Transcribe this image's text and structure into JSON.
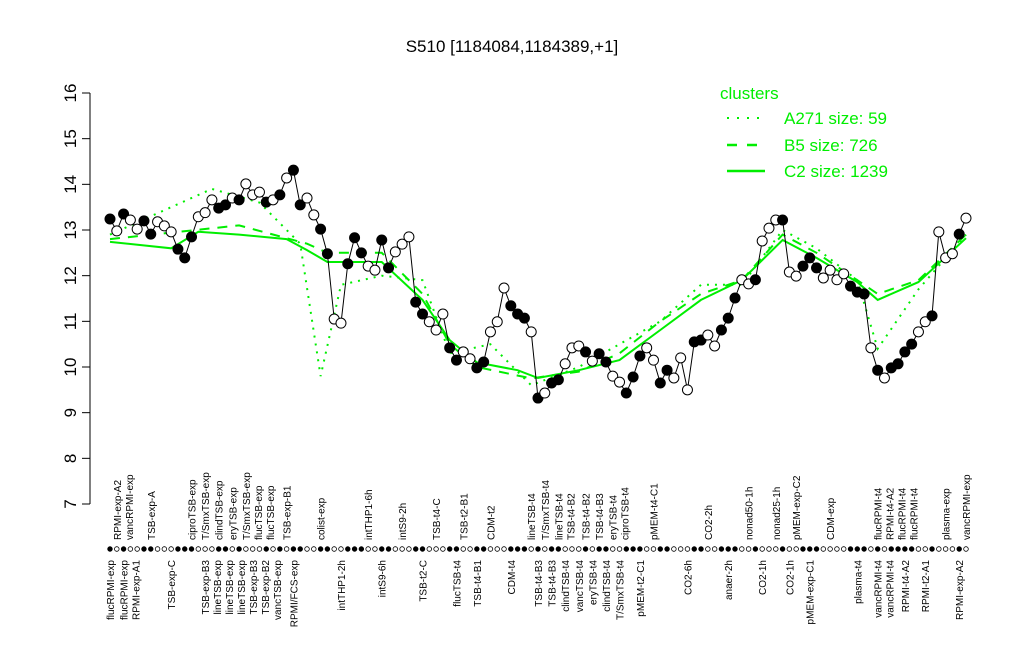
{
  "chart_data": {
    "type": "line",
    "title": "S510 [1184084,1184389,+1]",
    "xlabel": "",
    "ylabel": "",
    "ylim": [
      7,
      16
    ],
    "yticks": [
      7,
      8,
      9,
      10,
      11,
      12,
      13,
      14,
      15,
      16
    ],
    "grid": false,
    "legend": {
      "title": "clusters",
      "placement": "top-right",
      "color": "#00ee00",
      "entries": [
        {
          "label": "A271 size: 59",
          "style": "dotted"
        },
        {
          "label": "B5 size: 726",
          "style": "dashed"
        },
        {
          "label": "C2 size: 1239",
          "style": "solid"
        }
      ]
    },
    "sample_values": [
      13.24,
      12.98,
      13.35,
      13.22,
      13.02,
      13.2,
      12.91,
      13.18,
      13.09,
      12.96,
      12.58,
      12.39,
      12.85,
      13.29,
      13.38,
      13.66,
      13.48,
      13.55,
      13.7,
      13.66,
      14.01,
      13.77,
      13.83,
      13.61,
      13.66,
      13.77,
      14.14,
      14.31,
      13.55,
      13.7,
      13.33,
      13.02,
      12.48,
      11.05,
      10.96,
      12.26,
      12.83,
      12.5,
      12.21,
      12.12,
      12.78,
      12.17,
      12.52,
      12.69,
      12.85,
      11.42,
      11.16,
      10.99,
      10.81,
      11.16,
      10.42,
      10.15,
      10.33,
      10.18,
      9.98,
      10.11,
      10.77,
      10.99,
      11.73,
      11.34,
      11.16,
      11.07,
      10.77,
      9.32,
      9.43,
      9.65,
      9.72,
      10.07,
      10.42,
      10.46,
      10.33,
      10.13,
      10.29,
      10.11,
      9.8,
      9.67,
      9.43,
      9.78,
      10.24,
      10.42,
      10.15,
      9.65,
      9.93,
      9.76,
      10.2,
      9.5,
      10.55,
      10.59,
      10.7,
      10.46,
      10.81,
      11.07,
      11.51,
      11.91,
      11.82,
      11.91,
      12.76,
      13.04,
      13.22,
      13.22,
      12.08,
      11.99,
      12.21,
      12.39,
      12.17,
      11.95,
      12.12,
      11.91,
      12.04,
      11.77,
      11.64,
      11.6,
      10.42,
      9.93,
      9.76,
      9.98,
      10.07,
      10.33,
      10.5,
      10.77,
      10.99,
      11.12,
      12.96,
      12.39,
      12.48,
      12.91,
      13.26
    ],
    "sample_filled": [
      1,
      0,
      1,
      0,
      0,
      1,
      1,
      0,
      0,
      0,
      1,
      1,
      1,
      0,
      0,
      0,
      1,
      1,
      0,
      1,
      0,
      0,
      0,
      1,
      0,
      1,
      0,
      1,
      1,
      0,
      0,
      1,
      1,
      0,
      0,
      1,
      1,
      1,
      0,
      0,
      1,
      1,
      0,
      0,
      0,
      1,
      1,
      0,
      0,
      0,
      1,
      1,
      0,
      0,
      1,
      1,
      0,
      0,
      0,
      1,
      1,
      1,
      0,
      1,
      0,
      1,
      1,
      0,
      0,
      0,
      1,
      0,
      1,
      1,
      0,
      0,
      1,
      1,
      1,
      0,
      0,
      1,
      1,
      0,
      0,
      0,
      1,
      1,
      0,
      0,
      1,
      1,
      1,
      0,
      0,
      1,
      0,
      0,
      0,
      1,
      0,
      0,
      1,
      1,
      1,
      0,
      0,
      0,
      0,
      1,
      1,
      1,
      0,
      1,
      0,
      1,
      1,
      1,
      1,
      0,
      0,
      1,
      0,
      0,
      0,
      1,
      0
    ],
    "series": [
      {
        "name": "C2 size: 1239",
        "style": "solid",
        "points": [
          [
            0,
            12.74
          ],
          [
            9,
            12.6
          ],
          [
            13,
            12.96
          ],
          [
            19,
            12.9
          ],
          [
            26,
            12.8
          ],
          [
            29,
            12.56
          ],
          [
            32,
            12.3
          ],
          [
            40,
            12.3
          ],
          [
            46,
            11.47
          ],
          [
            50,
            10.59
          ],
          [
            54,
            10.1
          ],
          [
            60,
            9.93
          ],
          [
            63,
            9.76
          ],
          [
            69,
            9.93
          ],
          [
            75,
            10.15
          ],
          [
            81,
            10.81
          ],
          [
            87,
            11.47
          ],
          [
            93,
            11.9
          ],
          [
            99,
            12.78
          ],
          [
            104,
            12.39
          ],
          [
            110,
            11.86
          ],
          [
            113,
            11.47
          ],
          [
            119,
            11.86
          ],
          [
            126,
            12.82
          ]
        ]
      },
      {
        "name": "B5 size: 726",
        "style": "dashed",
        "points": [
          [
            0,
            12.8
          ],
          [
            19,
            13.1
          ],
          [
            29,
            12.7
          ],
          [
            32,
            12.5
          ],
          [
            40,
            12.5
          ],
          [
            46,
            11.6
          ],
          [
            50,
            10.5
          ],
          [
            54,
            10.0
          ],
          [
            62,
            9.75
          ],
          [
            69,
            9.9
          ],
          [
            75,
            10.3
          ],
          [
            81,
            11.0
          ],
          [
            87,
            11.6
          ],
          [
            93,
            11.9
          ],
          [
            99,
            12.9
          ],
          [
            104,
            12.5
          ],
          [
            110,
            11.9
          ],
          [
            113,
            11.6
          ],
          [
            119,
            11.9
          ],
          [
            126,
            12.9
          ]
        ]
      },
      {
        "name": "A271 size: 59",
        "style": "dotted",
        "points": [
          [
            0,
            12.9
          ],
          [
            15,
            13.9
          ],
          [
            22,
            13.6
          ],
          [
            28,
            12.7
          ],
          [
            31,
            9.8
          ],
          [
            34,
            11.8
          ],
          [
            40,
            12.0
          ],
          [
            46,
            11.9
          ],
          [
            50,
            10.3
          ],
          [
            56,
            10.5
          ],
          [
            62,
            9.6
          ],
          [
            69,
            10.0
          ],
          [
            75,
            10.5
          ],
          [
            81,
            11.0
          ],
          [
            87,
            11.8
          ],
          [
            93,
            11.8
          ],
          [
            99,
            13.0
          ],
          [
            104,
            12.6
          ],
          [
            110,
            11.9
          ],
          [
            113,
            10.4
          ],
          [
            119,
            11.7
          ],
          [
            126,
            12.9
          ]
        ]
      }
    ],
    "top_labels": [
      {
        "i": 1,
        "t": "RPMI-exp-A2"
      },
      {
        "i": 2,
        "t": "vancRPMI-exp"
      },
      {
        "i": 6,
        "t": "TSB-exp-A"
      },
      {
        "i": 12,
        "t": "ciproTSB-exp"
      },
      {
        "i": 14,
        "t": "T/SmxTSB-exp"
      },
      {
        "i": 16,
        "t": "clindTSB-exp"
      },
      {
        "i": 18,
        "t": "eryTSB-exp"
      },
      {
        "i": 20,
        "t": "T/SmxTSB-exp"
      },
      {
        "i": 21,
        "t": "flucTSB-exp"
      },
      {
        "i": 23,
        "t": "flucTSB-exp"
      },
      {
        "i": 26,
        "t": "TSB-exp-B1"
      },
      {
        "i": 31,
        "t": "colist-exp"
      },
      {
        "i": 38,
        "t": "intTHP1-6h"
      },
      {
        "i": 43,
        "t": "intS9-2h"
      },
      {
        "i": 48,
        "t": "TSB-t4-C"
      },
      {
        "i": 52,
        "t": "TSB-t2-B1"
      },
      {
        "i": 56,
        "t": "CDM-t2"
      },
      {
        "i": 62,
        "t": "lineTSB-t4"
      },
      {
        "i": 64,
        "t": "T/SmxTSB-t4"
      },
      {
        "i": 66,
        "t": "lineTSB-t4"
      },
      {
        "i": 67,
        "t": "TSB-t4-B2"
      },
      {
        "i": 70,
        "t": "TSB-t4-B2"
      },
      {
        "i": 72,
        "t": "TSB-t4-B3"
      },
      {
        "i": 74,
        "t": "eryTSB-t4"
      },
      {
        "i": 75,
        "t": "ciproTSB-t4"
      },
      {
        "i": 80,
        "t": "pMEM-t4-C1"
      },
      {
        "i": 88,
        "t": "CO2-2h"
      },
      {
        "i": 94,
        "t": "nonad50-1h"
      },
      {
        "i": 98,
        "t": "nonad25-1h"
      },
      {
        "i": 101,
        "t": "pMEM-exp-C2"
      },
      {
        "i": 106,
        "t": "CDM-exp"
      },
      {
        "i": 113,
        "t": "flucRPMI-t4"
      },
      {
        "i": 114,
        "t": "RPMI-t4-A2"
      },
      {
        "i": 116,
        "t": "flucRPMI-t4"
      },
      {
        "i": 118,
        "t": "flucRPMI-t4"
      },
      {
        "i": 123,
        "t": "plasma-exp"
      },
      {
        "i": 126,
        "t": "vancRPMI-exp"
      }
    ],
    "bottom_labels": [
      {
        "i": 0,
        "t": "flucRPMI-exp"
      },
      {
        "i": 2,
        "t": "flucRPMI-exp"
      },
      {
        "i": 3,
        "t": "RPMI-exp-A1"
      },
      {
        "i": 9,
        "t": "TSB-exp-C"
      },
      {
        "i": 14,
        "t": "TSB-exp-B3"
      },
      {
        "i": 15,
        "t": "lineTSB-exp"
      },
      {
        "i": 17,
        "t": "lineTSB-exp"
      },
      {
        "i": 19,
        "t": "lineTSB-exp"
      },
      {
        "i": 20,
        "t": "TSB-exp-B3"
      },
      {
        "i": 21,
        "t": "TSB-exp-B2"
      },
      {
        "i": 23,
        "t": "vancTSB-exp"
      },
      {
        "i": 27,
        "t": "RPMI/FCS-exp"
      },
      {
        "i": 34,
        "t": "intTHP1-2h"
      },
      {
        "i": 40,
        "t": "intS9-6h"
      },
      {
        "i": 46,
        "t": "TSB-t2-C"
      },
      {
        "i": 51,
        "t": "flucTSB-t4"
      },
      {
        "i": 54,
        "t": "TSB-t4-B1"
      },
      {
        "i": 59,
        "t": "CDM-t4"
      },
      {
        "i": 63,
        "t": "TSB-t4-B3"
      },
      {
        "i": 65,
        "t": "TSB-t4-B3"
      },
      {
        "i": 67,
        "t": "clindTSB-t4"
      },
      {
        "i": 69,
        "t": "vancTSB-t4"
      },
      {
        "i": 71,
        "t": "eryTSB-t4"
      },
      {
        "i": 73,
        "t": "clindTSB-t4"
      },
      {
        "i": 75,
        "t": "T/SmxTSB-t4"
      },
      {
        "i": 78,
        "t": "pMEM-t2-C1"
      },
      {
        "i": 85,
        "t": "CO2-6h"
      },
      {
        "i": 91,
        "t": "anaer-2h"
      },
      {
        "i": 96,
        "t": "CO2-1h"
      },
      {
        "i": 100,
        "t": "CO2-1h"
      },
      {
        "i": 103,
        "t": "pMEM-exp-C1"
      },
      {
        "i": 110,
        "t": "plasma-t4"
      },
      {
        "i": 113,
        "t": "vancRPMI-t4"
      },
      {
        "i": 114,
        "t": "vancRPMI-t4"
      },
      {
        "i": 117,
        "t": "RPMI-t4-A2"
      },
      {
        "i": 120,
        "t": "RPMI-t2-A1"
      },
      {
        "i": 125,
        "t": "RPMI-exp-A2"
      }
    ]
  }
}
